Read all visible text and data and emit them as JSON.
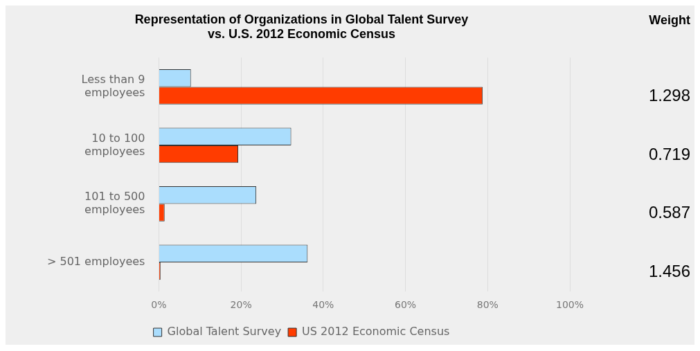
{
  "chart_data": {
    "type": "bar",
    "orientation": "horizontal",
    "title": "Representation of Organizations in Global Talent Survey\nvs. U.S. 2012 Economic Census",
    "categories": [
      "Less than 9 employees",
      "10 to 100 employees",
      "101 to 500 employees",
      "> 501 employees"
    ],
    "series": [
      {
        "name": "Global Talent Survey",
        "color": "#aaddfd",
        "values": [
          7.8,
          32.2,
          23.7,
          36.2
        ]
      },
      {
        "name": "US 2012 Economic Census",
        "color": "#ff3c00",
        "values": [
          78.8,
          19.3,
          1.4,
          0.4
        ]
      }
    ],
    "xlim": [
      0,
      100
    ],
    "xticks": [
      {
        "value": 0,
        "label": "0%"
      },
      {
        "value": 20,
        "label": "20%"
      },
      {
        "value": 40,
        "label": "40%"
      },
      {
        "value": 60,
        "label": "60%"
      },
      {
        "value": 80,
        "label": "80%"
      },
      {
        "value": 100,
        "label": "100%"
      }
    ],
    "grid": "x",
    "legend": "bottom",
    "annotations": [
      "Weight",
      "1.298",
      "0.719",
      "0.587",
      "1.456"
    ]
  }
}
